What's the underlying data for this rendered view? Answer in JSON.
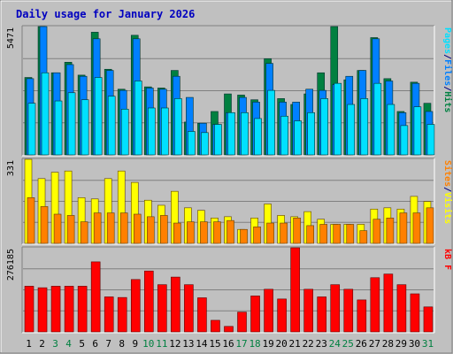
{
  "chart_data": [
    {
      "type": "bar",
      "title": "Daily usage for January 2026",
      "ylabel_parts": [
        "Pages",
        "/",
        "Files",
        "/",
        "Hits"
      ],
      "ymax_label": "5471",
      "ylim": [
        0,
        5471
      ],
      "categories": [
        "1",
        "2",
        "3",
        "4",
        "5",
        "6",
        "7",
        "8",
        "9",
        "10",
        "11",
        "12",
        "13",
        "14",
        "15",
        "16",
        "17",
        "18",
        "19",
        "20",
        "21",
        "22",
        "23",
        "24",
        "25",
        "26",
        "27",
        "28",
        "29",
        "30",
        "31"
      ],
      "weekend_days": [
        "3",
        "4",
        "10",
        "11",
        "17",
        "18",
        "24",
        "25",
        "31"
      ],
      "series": [
        {
          "name": "Hits",
          "values": [
            3300,
            5471,
            3500,
            3950,
            3400,
            5230,
            3650,
            2800,
            5100,
            2900,
            2850,
            3600,
            1400,
            1350,
            1850,
            2600,
            2550,
            2350,
            4100,
            2400,
            2150,
            2600,
            3500,
            5471,
            3200,
            3600,
            5000,
            3250,
            1850,
            3100,
            2200
          ]
        },
        {
          "name": "Files",
          "values": [
            3250,
            5471,
            3500,
            3850,
            3350,
            4950,
            3600,
            2750,
            4950,
            2850,
            2800,
            3350,
            2450,
            1350,
            1300,
            1800,
            2450,
            2250,
            3900,
            2250,
            2250,
            2800,
            2750,
            3000,
            3350,
            3600,
            4950,
            3150,
            1800,
            3050,
            1850
          ]
        },
        {
          "name": "Pages",
          "values": [
            2200,
            3500,
            2300,
            2650,
            2350,
            3300,
            2500,
            1950,
            3150,
            2000,
            2000,
            2400,
            1000,
            950,
            1300,
            1800,
            1800,
            1550,
            2750,
            1650,
            1450,
            1800,
            2400,
            3050,
            2150,
            2400,
            3050,
            2150,
            1250,
            2050,
            1300
          ]
        }
      ],
      "colors": {
        "Hits": "#008040",
        "Files": "#0080ff",
        "Pages": "#00e0ff"
      }
    },
    {
      "type": "bar",
      "ylabel_parts": [
        "Sites",
        "/",
        "Visits"
      ],
      "ymax_label": "331",
      "ylim": [
        0,
        331
      ],
      "categories": [
        "1",
        "2",
        "3",
        "4",
        "5",
        "6",
        "7",
        "8",
        "9",
        "10",
        "11",
        "12",
        "13",
        "14",
        "15",
        "16",
        "17",
        "18",
        "19",
        "20",
        "21",
        "22",
        "23",
        "24",
        "25",
        "26",
        "27",
        "28",
        "29",
        "30",
        "31"
      ],
      "series": [
        {
          "name": "Visits",
          "values": [
            331,
            255,
            280,
            285,
            180,
            175,
            255,
            285,
            240,
            170,
            150,
            205,
            140,
            130,
            100,
            105,
            55,
            100,
            155,
            110,
            105,
            125,
            95,
            75,
            75,
            75,
            135,
            140,
            135,
            185,
            165
          ]
        },
        {
          "name": "Sites",
          "values": [
            180,
            145,
            115,
            110,
            85,
            120,
            120,
            120,
            115,
            105,
            110,
            80,
            85,
            85,
            85,
            90,
            55,
            65,
            80,
            80,
            100,
            70,
            75,
            75,
            75,
            50,
            95,
            100,
            120,
            120,
            140
          ]
        }
      ],
      "colors": {
        "Visits": "#ffff00",
        "Sites": "#ff8000"
      }
    },
    {
      "type": "bar",
      "ylabel_parts": [
        "kB",
        "F"
      ],
      "ymax_label": "276185",
      "ylim": [
        0,
        276185
      ],
      "categories": [
        "1",
        "2",
        "3",
        "4",
        "5",
        "6",
        "7",
        "8",
        "9",
        "10",
        "11",
        "12",
        "13",
        "14",
        "15",
        "16",
        "17",
        "18",
        "19",
        "20",
        "21",
        "22",
        "23",
        "24",
        "25",
        "26",
        "27",
        "28",
        "29",
        "30",
        "31"
      ],
      "series": [
        {
          "name": "kB F",
          "values": [
            150000,
            145000,
            150000,
            150000,
            150000,
            230000,
            115000,
            113000,
            172000,
            200000,
            155000,
            180000,
            155000,
            112000,
            38000,
            18000,
            65000,
            118000,
            140000,
            108000,
            276185,
            140000,
            115000,
            155000,
            140000,
            105000,
            178000,
            190000,
            155000,
            125000,
            82000
          ]
        }
      ],
      "colors": {
        "kB F": "#ff0000"
      }
    }
  ]
}
